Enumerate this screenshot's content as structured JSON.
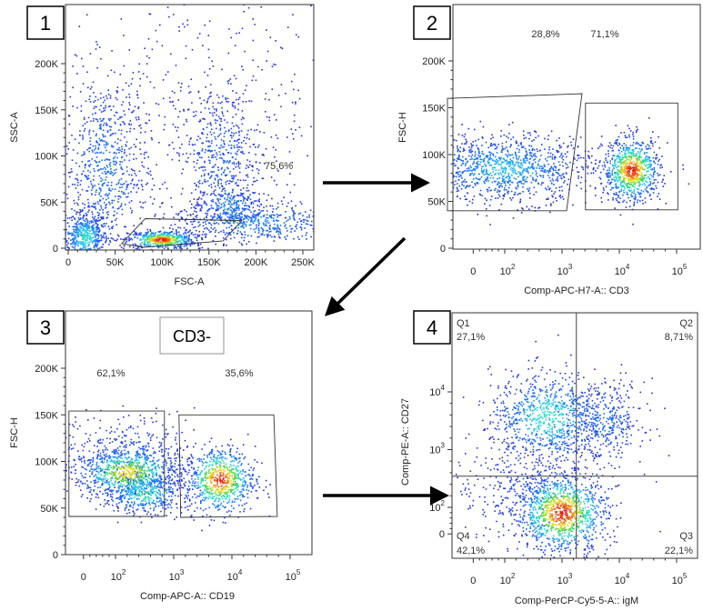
{
  "chart_data": [
    {
      "type": "scatter",
      "panel_number": "1",
      "xlabel": "FSC-A",
      "ylabel": "SSC-A",
      "x_scale": "linear",
      "y_scale": "linear",
      "xlim": [
        0,
        265000
      ],
      "ylim": [
        0,
        264000
      ],
      "x_ticks": [
        "0",
        "50K",
        "100K",
        "150K",
        "200K",
        "250K"
      ],
      "x_tick_values": [
        0,
        50000,
        100000,
        150000,
        200000,
        250000
      ],
      "y_ticks": [
        "0",
        "50K",
        "100K",
        "150K",
        "200K"
      ],
      "y_tick_values": [
        0,
        50000,
        100000,
        150000,
        200000
      ],
      "gates": [
        {
          "label": "75,6%",
          "polygon": [
            [
              57000,
              5000
            ],
            [
              82000,
              32000
            ],
            [
              185000,
              30000
            ],
            [
              165000,
              8000
            ],
            [
              80000,
              1000
            ]
          ]
        }
      ],
      "populations": [
        {
          "center": [
            18000,
            12000
          ],
          "sd": [
            12000,
            14000
          ],
          "n": 500,
          "peak": 0.55
        },
        {
          "center": [
            100000,
            9000
          ],
          "sd": [
            18000,
            5000
          ],
          "n": 500,
          "peak": 1.0
        },
        {
          "center": [
            40000,
            85000
          ],
          "sd": [
            22000,
            50000
          ],
          "n": 700,
          "peak": 0.3
        },
        {
          "center": [
            162000,
            100000
          ],
          "sd": [
            22000,
            38000
          ],
          "n": 450,
          "peak": 0.25
        },
        {
          "center": [
            172000,
            45000
          ],
          "sd": [
            18000,
            12000
          ],
          "n": 220,
          "peak": 0.4
        },
        {
          "center": [
            200000,
            28000
          ],
          "sd": [
            45000,
            12000
          ],
          "n": 500,
          "peak": 0.35
        },
        {
          "center": [
            150000,
            150000
          ],
          "sd": [
            80000,
            70000
          ],
          "n": 400,
          "peak": 0.05
        }
      ]
    },
    {
      "type": "scatter",
      "panel_number": "2",
      "xlabel": "Comp-APC-H7-A:: CD3",
      "ylabel": "FSC-H",
      "x_scale": "biexponential",
      "y_scale": "linear",
      "x_ticks": [
        "0",
        "10^2",
        "10^3",
        "10^4",
        "10^5"
      ],
      "x_tick_values": [
        1.45,
        2,
        3,
        4,
        5
      ],
      "y_ticks": [
        "0",
        "50K",
        "100K",
        "150K",
        "200K"
      ],
      "y_tick_values": [
        0,
        50000,
        100000,
        150000,
        200000
      ],
      "ylim": [
        0,
        262000
      ],
      "gates": [
        {
          "label": "28,8%",
          "polygon": [
            [
              1.0,
              160000
            ],
            [
              3.35,
              165000
            ],
            [
              3.08,
              40000
            ],
            [
              1.0,
              40000
            ]
          ]
        },
        {
          "label": "71,1%",
          "polygon": [
            [
              3.41,
              155000
            ],
            [
              5.02,
              155000
            ],
            [
              5.02,
              41000
            ],
            [
              3.41,
              41000
            ]
          ]
        }
      ],
      "populations": [
        {
          "center": [
            2.0,
            85000
          ],
          "sd": [
            0.75,
            18000
          ],
          "n": 1100,
          "peak": 0.45
        },
        {
          "center": [
            4.22,
            83000
          ],
          "sd": [
            0.25,
            17000
          ],
          "n": 800,
          "peak": 1.0
        }
      ]
    },
    {
      "type": "scatter",
      "panel_number": "3",
      "title": "CD3-",
      "xlabel": "Comp-APC-A:: CD19",
      "ylabel": "FSC-H",
      "x_scale": "biexponential",
      "y_scale": "linear",
      "x_ticks": [
        "0",
        "10^2",
        "10^3",
        "10^4",
        "10^5"
      ],
      "x_tick_values": [
        1.45,
        2,
        3,
        4,
        5
      ],
      "y_ticks": [
        "0",
        "50K",
        "100K",
        "150K",
        "200K"
      ],
      "y_tick_values": [
        0,
        50000,
        100000,
        150000,
        200000
      ],
      "ylim": [
        0,
        261000
      ],
      "gates": [
        {
          "label": "62,1%",
          "polygon": [
            [
              1.2,
              154000
            ],
            [
              2.84,
              154000
            ],
            [
              2.84,
              41000
            ],
            [
              1.2,
              41000
            ]
          ]
        },
        {
          "label": "35,6%",
          "polygon": [
            [
              3.09,
              150000
            ],
            [
              4.72,
              150000
            ],
            [
              4.78,
              41000
            ],
            [
              3.12,
              40000
            ]
          ]
        }
      ],
      "populations": [
        {
          "center": [
            2.2,
            88000
          ],
          "sd": [
            0.45,
            14000
          ],
          "n": 700,
          "peak": 0.85
        },
        {
          "center": [
            2.5,
            65000
          ],
          "sd": [
            0.35,
            11000
          ],
          "n": 400,
          "peak": 0.6
        },
        {
          "center": [
            2.2,
            105000
          ],
          "sd": [
            0.6,
            22000
          ],
          "n": 400,
          "peak": 0.25
        },
        {
          "center": [
            3.8,
            80000
          ],
          "sd": [
            0.3,
            18000
          ],
          "n": 700,
          "peak": 1.0
        }
      ]
    },
    {
      "type": "scatter",
      "panel_number": "4",
      "xlabel": "Comp-PerCP-Cy5-5-A:: igM",
      "ylabel": "Comp-PE-A:: CD27",
      "x_scale": "biexponential",
      "y_scale": "biexponential",
      "x_ticks": [
        "0",
        "10^2",
        "10^3",
        "10^4",
        "10^5"
      ],
      "x_tick_values": [
        1.45,
        2,
        3,
        4,
        5
      ],
      "y_ticks": [
        "0",
        "10^2",
        "10^3",
        "10^4"
      ],
      "y_tick_values": [
        1.54,
        2,
        3,
        4
      ],
      "quadrant_split": [
        3.25,
        2.54
      ],
      "quadrants": [
        {
          "name": "Q1",
          "value": "27,1%",
          "position": "top-left"
        },
        {
          "name": "Q2",
          "value": "8,71%",
          "position": "top-right"
        },
        {
          "name": "Q3",
          "value": "22,1%",
          "position": "bottom-right"
        },
        {
          "name": "Q4",
          "value": "42,1%",
          "position": "bottom-left"
        }
      ],
      "populations": [
        {
          "center": [
            2.75,
            3.55
          ],
          "sd": [
            0.5,
            0.4
          ],
          "n": 800,
          "peak": 0.55
        },
        {
          "center": [
            3.75,
            3.5
          ],
          "sd": [
            0.35,
            0.35
          ],
          "n": 350,
          "peak": 0.3
        },
        {
          "center": [
            3.0,
            1.9
          ],
          "sd": [
            0.4,
            0.35
          ],
          "n": 1100,
          "peak": 1.0
        },
        {
          "center": [
            2.3,
            2.4
          ],
          "sd": [
            0.6,
            0.5
          ],
          "n": 350,
          "peak": 0.15
        }
      ]
    }
  ],
  "arrows": {
    "count": 3
  }
}
